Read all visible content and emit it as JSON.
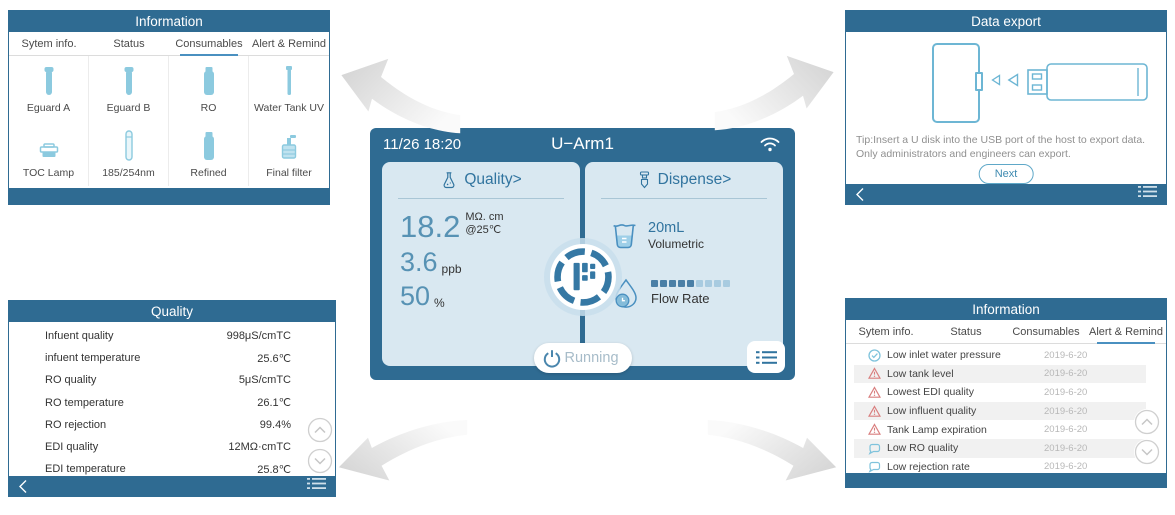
{
  "colors": {
    "bar_blue": "#2f6b92",
    "accent_blue": "#31749f",
    "active_tab_underline": "#4a90c0",
    "card_bg": "#d9e8f1",
    "value_blue": "#5792b4",
    "light_icon_blue": "#7fc3dc",
    "alert_red": "#d97f7f",
    "date_gray": "#b8b8b8"
  },
  "panels": {
    "consumables": {
      "title": "Information",
      "tabs": [
        "Sytem info.",
        "Status",
        "Consumables",
        "Alert & Remind"
      ],
      "active_tab": "Consumables",
      "items": [
        {
          "label": "Eguard A",
          "icon": "cartridge-tube-icon"
        },
        {
          "label": "Eguard B",
          "icon": "cartridge-tube-icon"
        },
        {
          "label": "RO",
          "icon": "capped-tube-icon"
        },
        {
          "label": "Water Tank UV",
          "icon": "thin-capped-tube-icon"
        },
        {
          "label": "TOC Lamp",
          "icon": "lamp-icon"
        },
        {
          "label": "185/254nm",
          "icon": "uv-tube-icon"
        },
        {
          "label": "Refined",
          "icon": "capped-tube-icon"
        },
        {
          "label": "Final filter",
          "icon": "filter-icon"
        }
      ]
    },
    "data_export": {
      "title": "Data export",
      "tip_line1": "Tip:Insert a U disk into the USB port of the host to export data.",
      "tip_line2": "Only administrators and engineers can export.",
      "next_label": "Next"
    },
    "quality": {
      "title": "Quality",
      "rows": [
        {
          "label": "Infuent quality",
          "value": "998μS/cmTC"
        },
        {
          "label": "infuent temperature",
          "value": "25.6℃"
        },
        {
          "label": "RO quality",
          "value": "5μS/cmTC"
        },
        {
          "label": "RO temperature",
          "value": "26.1℃"
        },
        {
          "label": "RO rejection",
          "value": "99.4%"
        },
        {
          "label": "EDI quality",
          "value": "12MΩ·cmTC"
        },
        {
          "label": "EDI temperature",
          "value": "25.8℃"
        }
      ]
    },
    "alerts": {
      "title": "Information",
      "tabs": [
        "Sytem info.",
        "Status",
        "Consumables",
        "Alert & Remind"
      ],
      "active_tab": "Alert & Remind",
      "rows": [
        {
          "icon": "check-circle-icon",
          "label": "Low inlet water pressure",
          "date": "2019-6-20"
        },
        {
          "icon": "warning-triangle-icon",
          "label": "Low tank level",
          "date": "2019-6-20"
        },
        {
          "icon": "warning-triangle-icon",
          "label": "Lowest EDI quality",
          "date": "2019-6-20"
        },
        {
          "icon": "warning-triangle-icon",
          "label": "Low influent quality",
          "date": "2019-6-20"
        },
        {
          "icon": "warning-triangle-icon",
          "label": "Tank Lamp expiration",
          "date": "2019-6-20"
        },
        {
          "icon": "remind-bubble-icon",
          "label": "Low RO quality",
          "date": "2019-6-20"
        },
        {
          "icon": "remind-bubble-icon",
          "label": "Low rejection rate",
          "date": "2019-6-20"
        }
      ]
    },
    "main": {
      "datetime": "11/26 18:20",
      "title": "U−Arm1",
      "status_label": "Running",
      "quality": {
        "label": "Quality>",
        "resistivity_value": "18.2",
        "resistivity_unit": "MΩ. cm",
        "resistivity_condition": "@25℃",
        "toc_value": "3.6",
        "toc_unit": "ppb",
        "tank_value": "50",
        "tank_unit": "%"
      },
      "dispense": {
        "label": "Dispense>",
        "volume": "20mL",
        "mode": "Volumetric",
        "flow_label": "Flow Rate",
        "flow_filled": 5,
        "flow_total": 9
      }
    }
  }
}
